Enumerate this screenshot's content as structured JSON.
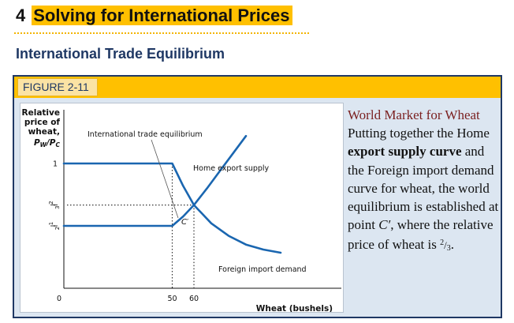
{
  "slide": {
    "number": "4",
    "title": "Solving for International Prices",
    "subtitle": "International Trade Equilibrium"
  },
  "figure": {
    "label": "FIGURE 2-11",
    "caption": {
      "title_line": "World Market for Wheat",
      "text_1": " Putting together the Home ",
      "bold_1": "export supply curve",
      "text_2": " and the Foreign import demand curve for wheat, the world equilibrium is established at point ",
      "point": "C′",
      "text_3": ", where the relative price of wheat is ",
      "frac_num": "2",
      "frac_den": "3",
      "text_4": "."
    }
  },
  "colors": {
    "accent_yellow": "#ffc000",
    "navy": "#1f3864",
    "curve_blue": "#1a66b0",
    "caption_red": "#7a1f1f"
  },
  "chart_data": {
    "type": "line",
    "ylabel_lines": [
      "Relative",
      "price of",
      "wheat,"
    ],
    "ylabel_symbol": "PW/PC",
    "xlabel": "Wheat (bushels)",
    "x_ticks": [
      {
        "value": 0,
        "label": "0"
      },
      {
        "value": 50,
        "label": "50"
      },
      {
        "value": 60,
        "label": "60"
      }
    ],
    "y_ticks": [
      {
        "value": 1,
        "label": "1"
      },
      {
        "value": 0.6667,
        "label": "2/3"
      },
      {
        "value": 0.5,
        "label": "1/2"
      }
    ],
    "xlim": [
      0,
      128
    ],
    "ylim": [
      0,
      1.43
    ],
    "annotations": {
      "equilibrium_title": "International trade equilibrium",
      "home_export_supply": "Home export supply",
      "foreign_import_demand": "Foreign import demand",
      "point": "C′"
    },
    "series": [
      {
        "name": "Home export supply",
        "points": [
          [
            0,
            0.5
          ],
          [
            50,
            0.5
          ],
          [
            55,
            0.575
          ],
          [
            60,
            0.6667
          ],
          [
            66,
            0.8
          ],
          [
            72,
            0.94
          ],
          [
            78,
            1.08
          ],
          [
            84,
            1.22
          ]
        ]
      },
      {
        "name": "Foreign import demand",
        "points": [
          [
            0,
            1
          ],
          [
            50,
            1
          ],
          [
            55,
            0.82
          ],
          [
            60,
            0.6667
          ],
          [
            68,
            0.52
          ],
          [
            76,
            0.42
          ],
          [
            84,
            0.35
          ],
          [
            92,
            0.31
          ],
          [
            100,
            0.285
          ]
        ]
      }
    ]
  }
}
